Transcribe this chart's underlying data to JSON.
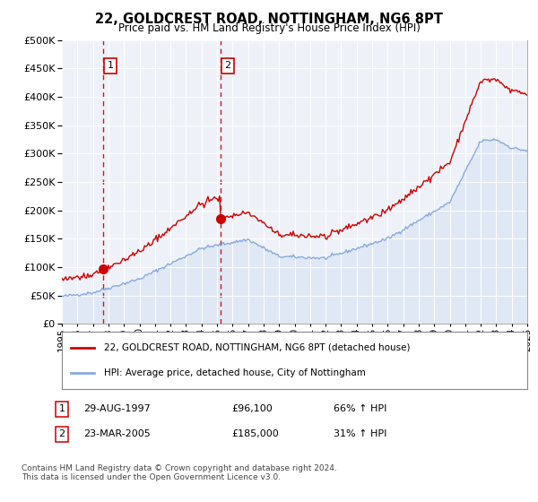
{
  "title": "22, GOLDCREST ROAD, NOTTINGHAM, NG6 8PT",
  "subtitle": "Price paid vs. HM Land Registry's House Price Index (HPI)",
  "sale1_date_x": 1997.66,
  "sale1_price": 96100,
  "sale1_label": "1",
  "sale1_ann_date": "29-AUG-1997",
  "sale1_amount": "£96,100",
  "sale1_hpi": "66% ↑ HPI",
  "sale2_date_x": 2005.22,
  "sale2_price": 185000,
  "sale2_label": "2",
  "sale2_ann_date": "23-MAR-2005",
  "sale2_amount": "£185,000",
  "sale2_hpi": "31% ↑ HPI",
  "red_line_color": "#cc0000",
  "blue_line_color": "#88aadd",
  "fill_color": "#c8d8f0",
  "dot_color": "#cc0000",
  "vline_color": "#cc0000",
  "plot_bg": "#eef2f8",
  "legend_red_label": "22, GOLDCREST ROAD, NOTTINGHAM, NG6 8PT (detached house)",
  "legend_blue_label": "HPI: Average price, detached house, City of Nottingham",
  "footer": "Contains HM Land Registry data © Crown copyright and database right 2024.\nThis data is licensed under the Open Government Licence v3.0.",
  "xmin": 1995,
  "xmax": 2025,
  "ymin": 0,
  "ymax": 500000,
  "yticks": [
    0,
    50000,
    100000,
    150000,
    200000,
    250000,
    300000,
    350000,
    400000,
    450000,
    500000
  ],
  "xticks": [
    1995,
    1996,
    1997,
    1998,
    1999,
    2000,
    2001,
    2002,
    2003,
    2004,
    2005,
    2006,
    2007,
    2008,
    2009,
    2010,
    2011,
    2012,
    2013,
    2014,
    2015,
    2016,
    2017,
    2018,
    2019,
    2020,
    2021,
    2022,
    2023,
    2024,
    2025
  ]
}
